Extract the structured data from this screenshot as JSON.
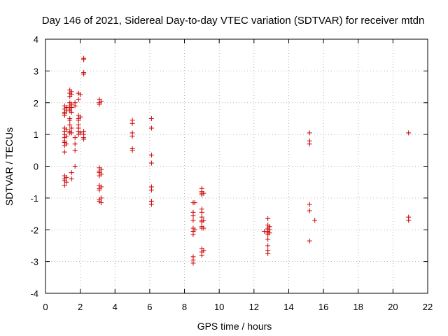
{
  "chart_data": {
    "type": "scatter",
    "title": "Day 146 of 2021, Sidereal Day-to-day VTEC variation (SDTVAR) for receiver mtdn",
    "xlabel": "GPS time / hours",
    "ylabel": "SDTVAR / TECUs",
    "xlim": [
      0,
      22
    ],
    "ylim": [
      -4,
      4
    ],
    "xticks": [
      0,
      2,
      4,
      6,
      8,
      10,
      12,
      14,
      16,
      18,
      20,
      22
    ],
    "yticks": [
      -4,
      -3,
      -2,
      -1,
      0,
      1,
      2,
      3,
      4
    ],
    "grid": true,
    "marker": "plus",
    "color": "#cc0000",
    "series": [
      {
        "name": "SDTVAR",
        "points": [
          [
            1.1,
            1.9
          ],
          [
            1.1,
            1.8
          ],
          [
            1.1,
            1.7
          ],
          [
            1.1,
            1.65
          ],
          [
            1.1,
            1.6
          ],
          [
            1.1,
            1.2
          ],
          [
            1.1,
            1.1
          ],
          [
            1.1,
            1.0
          ],
          [
            1.1,
            0.9
          ],
          [
            1.1,
            0.8
          ],
          [
            1.1,
            0.75
          ],
          [
            1.1,
            0.65
          ],
          [
            1.1,
            0.45
          ],
          [
            1.1,
            -0.3
          ],
          [
            1.1,
            -0.4
          ],
          [
            1.1,
            -0.45
          ],
          [
            1.1,
            -0.6
          ],
          [
            1.2,
            1.85
          ],
          [
            1.2,
            1.75
          ],
          [
            1.2,
            1.15
          ],
          [
            1.2,
            0.95
          ],
          [
            1.2,
            0.7
          ],
          [
            1.2,
            -0.35
          ],
          [
            1.2,
            -0.5
          ],
          [
            1.4,
            2.4
          ],
          [
            1.4,
            2.3
          ],
          [
            1.4,
            2.2
          ],
          [
            1.4,
            2.0
          ],
          [
            1.4,
            1.9
          ],
          [
            1.4,
            1.8
          ],
          [
            1.4,
            1.75
          ],
          [
            1.4,
            1.5
          ],
          [
            1.4,
            1.45
          ],
          [
            1.4,
            1.3
          ],
          [
            1.4,
            1.1
          ],
          [
            1.4,
            1.05
          ],
          [
            1.5,
            2.35
          ],
          [
            1.5,
            2.25
          ],
          [
            1.5,
            1.95
          ],
          [
            1.5,
            1.85
          ],
          [
            1.5,
            1.7
          ],
          [
            1.5,
            1.2
          ],
          [
            1.5,
            1.05
          ],
          [
            1.5,
            -0.2
          ],
          [
            1.5,
            -0.4
          ],
          [
            1.7,
            2.0
          ],
          [
            1.7,
            1.9
          ],
          [
            1.7,
            0.9
          ],
          [
            1.7,
            0.7
          ],
          [
            1.7,
            0.5
          ],
          [
            1.7,
            0.0
          ],
          [
            1.9,
            2.3
          ],
          [
            1.9,
            2.1
          ],
          [
            1.9,
            1.6
          ],
          [
            1.9,
            1.5
          ],
          [
            1.9,
            1.45
          ],
          [
            1.9,
            1.3
          ],
          [
            1.9,
            1.2
          ],
          [
            1.9,
            1.1
          ],
          [
            1.9,
            1.0
          ],
          [
            2.0,
            2.25
          ],
          [
            2.0,
            1.55
          ],
          [
            2.0,
            1.05
          ],
          [
            2.2,
            3.4
          ],
          [
            2.2,
            3.35
          ],
          [
            2.2,
            2.95
          ],
          [
            2.2,
            2.9
          ],
          [
            2.2,
            1.1
          ],
          [
            2.2,
            1.0
          ],
          [
            2.2,
            0.9
          ],
          [
            2.2,
            0.85
          ],
          [
            3.1,
            2.1
          ],
          [
            3.1,
            2.0
          ],
          [
            3.1,
            1.95
          ],
          [
            3.1,
            -0.05
          ],
          [
            3.1,
            -0.15
          ],
          [
            3.1,
            -0.2
          ],
          [
            3.1,
            -0.3
          ],
          [
            3.1,
            -0.6
          ],
          [
            3.1,
            -0.7
          ],
          [
            3.1,
            -0.75
          ],
          [
            3.1,
            -1.05
          ],
          [
            3.1,
            -1.1
          ],
          [
            3.2,
            2.05
          ],
          [
            3.2,
            -0.1
          ],
          [
            3.2,
            -0.25
          ],
          [
            3.2,
            -0.65
          ],
          [
            3.2,
            -1.0
          ],
          [
            3.2,
            -1.15
          ],
          [
            5.0,
            1.45
          ],
          [
            5.0,
            1.35
          ],
          [
            5.0,
            1.05
          ],
          [
            5.0,
            0.95
          ],
          [
            5.0,
            0.55
          ],
          [
            5.0,
            0.5
          ],
          [
            6.1,
            1.5
          ],
          [
            6.1,
            1.2
          ],
          [
            6.1,
            0.35
          ],
          [
            6.1,
            0.1
          ],
          [
            6.1,
            -0.65
          ],
          [
            6.1,
            -0.75
          ],
          [
            6.1,
            -1.1
          ],
          [
            6.1,
            -1.2
          ],
          [
            8.5,
            -1.15
          ],
          [
            8.5,
            -1.45
          ],
          [
            8.5,
            -1.55
          ],
          [
            8.5,
            -1.7
          ],
          [
            8.5,
            -1.95
          ],
          [
            8.5,
            -2.05
          ],
          [
            8.5,
            -2.15
          ],
          [
            8.5,
            -2.85
          ],
          [
            8.5,
            -2.95
          ],
          [
            8.5,
            -3.05
          ],
          [
            8.6,
            -1.15
          ],
          [
            8.6,
            -2.0
          ],
          [
            9.0,
            -0.7
          ],
          [
            9.0,
            -0.8
          ],
          [
            9.0,
            -0.85
          ],
          [
            9.0,
            -0.9
          ],
          [
            9.0,
            -1.35
          ],
          [
            9.0,
            -1.45
          ],
          [
            9.0,
            -1.6
          ],
          [
            9.0,
            -1.7
          ],
          [
            9.0,
            -1.75
          ],
          [
            9.0,
            -1.9
          ],
          [
            9.0,
            -1.95
          ],
          [
            9.0,
            -2.6
          ],
          [
            9.0,
            -2.7
          ],
          [
            9.0,
            -2.8
          ],
          [
            9.1,
            -0.85
          ],
          [
            9.1,
            -1.7
          ],
          [
            9.1,
            -1.95
          ],
          [
            9.1,
            -2.65
          ],
          [
            12.6,
            -2.05
          ],
          [
            12.8,
            -1.65
          ],
          [
            12.8,
            -1.85
          ],
          [
            12.8,
            -1.95
          ],
          [
            12.8,
            -2.0
          ],
          [
            12.8,
            -2.05
          ],
          [
            12.8,
            -2.1
          ],
          [
            12.8,
            -2.15
          ],
          [
            12.8,
            -2.3
          ],
          [
            12.8,
            -2.5
          ],
          [
            12.8,
            -2.65
          ],
          [
            12.8,
            -2.75
          ],
          [
            12.9,
            -1.9
          ],
          [
            12.9,
            -2.0
          ],
          [
            12.9,
            -2.1
          ],
          [
            15.2,
            1.05
          ],
          [
            15.2,
            0.8
          ],
          [
            15.2,
            0.7
          ],
          [
            15.2,
            -1.2
          ],
          [
            15.2,
            -1.4
          ],
          [
            15.2,
            -2.35
          ],
          [
            15.5,
            -1.7
          ],
          [
            20.9,
            1.05
          ],
          [
            20.9,
            -1.6
          ],
          [
            20.9,
            -1.7
          ]
        ]
      }
    ]
  }
}
